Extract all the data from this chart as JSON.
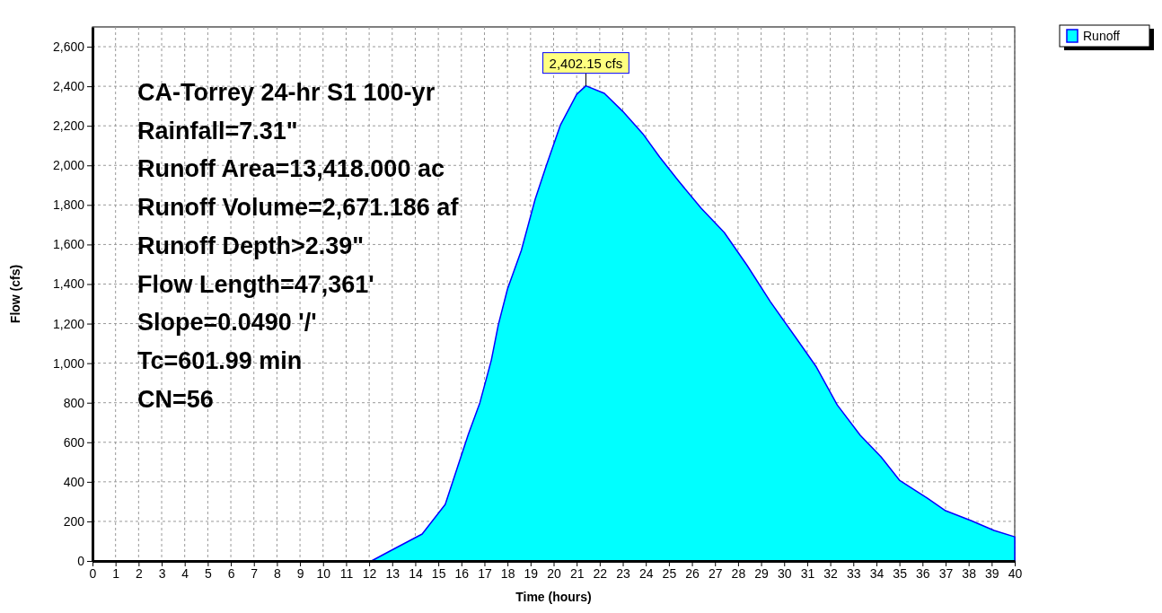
{
  "chart_data": {
    "type": "area",
    "xlabel": "Time  (hours)",
    "ylabel": "Flow  (cfs)",
    "x": [
      0,
      12.1,
      12.9,
      14.3,
      15.3,
      15.8,
      16.3,
      16.8,
      17.3,
      17.6,
      18.0,
      18.6,
      19.2,
      19.7,
      20.3,
      21.0,
      21.4,
      22.2,
      23.0,
      23.9,
      24.6,
      25.4,
      26.4,
      27.4,
      28.4,
      29.4,
      30.5,
      31.4,
      32.3,
      33.3,
      34.2,
      35.0,
      36.2,
      37.0,
      38.1,
      39.1,
      40
    ],
    "series": [
      {
        "name": "Runoff",
        "color": "#00ffff",
        "values": [
          0,
          0,
          50,
          136,
          286,
          463,
          640,
          799,
          1016,
          1193,
          1375,
          1570,
          1829,
          2005,
          2205,
          2359,
          2402.15,
          2364,
          2273,
          2155,
          2042,
          1924,
          1783,
          1661,
          1493,
          1311,
          1130,
          980,
          789,
          635,
          526,
          408,
          318,
          254,
          204,
          154,
          122
        ]
      }
    ],
    "xlim": [
      0,
      40
    ],
    "xticks": [
      0,
      1,
      2,
      3,
      4,
      5,
      6,
      7,
      8,
      9,
      10,
      11,
      12,
      13,
      14,
      15,
      16,
      17,
      18,
      19,
      20,
      21,
      22,
      23,
      24,
      25,
      26,
      27,
      28,
      29,
      30,
      31,
      32,
      33,
      34,
      35,
      36,
      37,
      38,
      39,
      40
    ],
    "ylim": [
      0,
      2700
    ],
    "yticks": [
      0,
      200,
      400,
      600,
      800,
      {
        "value": 1000,
        "label": "1,000"
      },
      {
        "value": 1200,
        "label": "1,200"
      },
      {
        "value": 1400,
        "label": "1,400"
      },
      {
        "value": 1600,
        "label": "1,600"
      },
      {
        "value": 1800,
        "label": "1,800"
      },
      {
        "value": 2000,
        "label": "2,000"
      },
      {
        "value": 2200,
        "label": "2,200"
      },
      {
        "value": 2400,
        "label": "2,400"
      },
      {
        "value": 2600,
        "label": "2,600"
      }
    ],
    "grid": true,
    "legend": "top right",
    "annotations": [
      {
        "text": "2,402.15 cfs",
        "x": 21.4,
        "y": 2402.15
      },
      "CA-Torrey 24-hr S1 100-yr",
      "Rainfall=7.31\"",
      "Runoff Area=13,418.000 ac",
      "Runoff Volume=2,671.186 af",
      "Runoff Depth>2.39\"",
      "Flow Length=47,361'",
      "Slope=0.0490 '/'",
      "Tc=601.99 min",
      "CN=56"
    ]
  }
}
